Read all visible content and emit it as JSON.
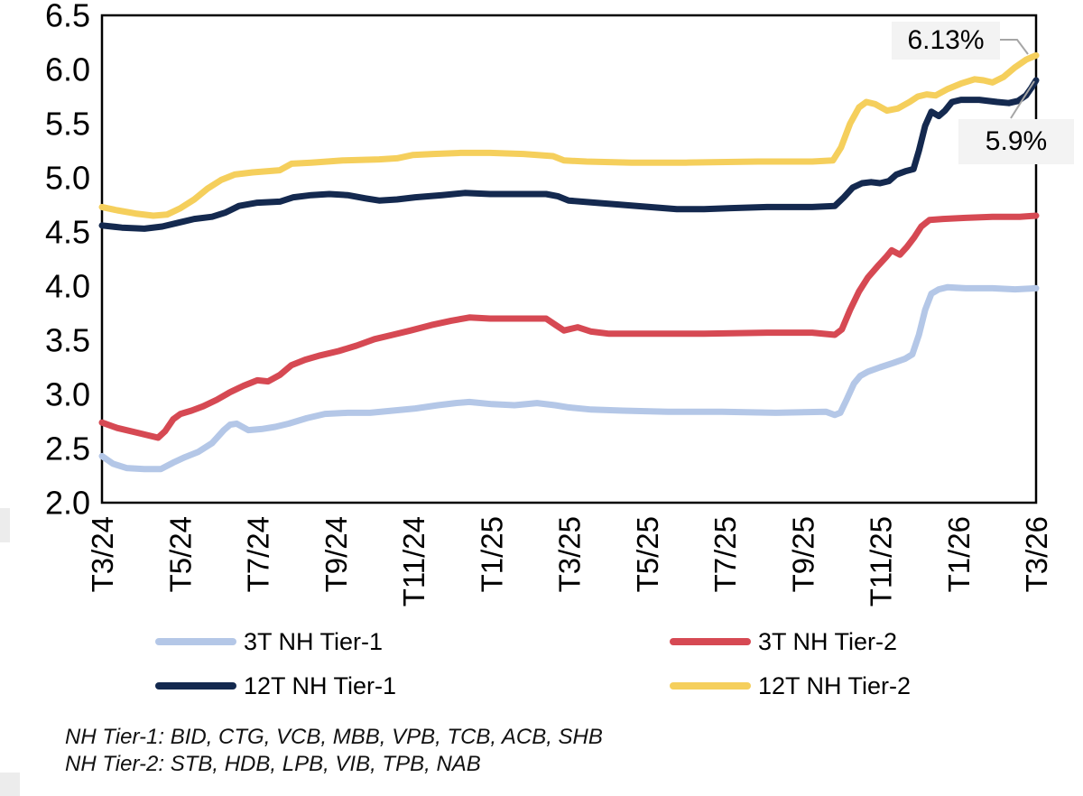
{
  "chart_data": {
    "type": "line",
    "title": "",
    "xlabel": "",
    "ylabel": "",
    "grid": false,
    "legend_position": "bottom",
    "ylim": [
      2.0,
      6.5
    ],
    "y_tick_step": 0.5,
    "y_ticks": [
      "2.0",
      "2.5",
      "3.0",
      "3.5",
      "4.0",
      "4.5",
      "5.0",
      "5.5",
      "6.0",
      "6.5"
    ],
    "x_ticks": [
      "T3/24",
      "T5/24",
      "T7/24",
      "T9/24",
      "T11/24",
      "T1/25",
      "T3/25",
      "T5/25",
      "T7/25",
      "T9/25",
      "T11/25",
      "T1/26",
      "T3/26"
    ],
    "x_tick_interval_months": 2,
    "x_range_months": [
      0,
      24
    ],
    "series": [
      {
        "name": "3T NH Tier-1",
        "color": "#B4C7E7",
        "points": [
          [
            0,
            2.43
          ],
          [
            0.28,
            2.36
          ],
          [
            0.63,
            2.32
          ],
          [
            1.09,
            2.31
          ],
          [
            1.51,
            2.31
          ],
          [
            1.83,
            2.37
          ],
          [
            2.13,
            2.42
          ],
          [
            2.48,
            2.47
          ],
          [
            2.83,
            2.55
          ],
          [
            3.13,
            2.67
          ],
          [
            3.29,
            2.72
          ],
          [
            3.46,
            2.73
          ],
          [
            3.76,
            2.67
          ],
          [
            4.1,
            2.68
          ],
          [
            4.45,
            2.7
          ],
          [
            4.8,
            2.73
          ],
          [
            5.26,
            2.78
          ],
          [
            5.73,
            2.82
          ],
          [
            6.31,
            2.83
          ],
          [
            6.89,
            2.83
          ],
          [
            7.47,
            2.85
          ],
          [
            8.05,
            2.87
          ],
          [
            8.63,
            2.9
          ],
          [
            9.09,
            2.92
          ],
          [
            9.44,
            2.93
          ],
          [
            10.02,
            2.91
          ],
          [
            10.6,
            2.9
          ],
          [
            11.18,
            2.92
          ],
          [
            11.64,
            2.9
          ],
          [
            11.99,
            2.88
          ],
          [
            12.57,
            2.86
          ],
          [
            13.38,
            2.85
          ],
          [
            14.54,
            2.84
          ],
          [
            15.93,
            2.84
          ],
          [
            17.32,
            2.83
          ],
          [
            18.6,
            2.84
          ],
          [
            18.83,
            2.81
          ],
          [
            18.97,
            2.83
          ],
          [
            19.13,
            2.95
          ],
          [
            19.32,
            3.1
          ],
          [
            19.48,
            3.17
          ],
          [
            19.68,
            3.21
          ],
          [
            19.99,
            3.25
          ],
          [
            20.33,
            3.29
          ],
          [
            20.64,
            3.33
          ],
          [
            20.82,
            3.37
          ],
          [
            20.99,
            3.55
          ],
          [
            21.15,
            3.78
          ],
          [
            21.31,
            3.93
          ],
          [
            21.5,
            3.97
          ],
          [
            21.73,
            3.99
          ],
          [
            22.19,
            3.98
          ],
          [
            22.88,
            3.98
          ],
          [
            23.46,
            3.97
          ],
          [
            24,
            3.98
          ]
        ]
      },
      {
        "name": "3T NH Tier-2",
        "color": "#D64953",
        "points": [
          [
            0,
            2.74
          ],
          [
            0.39,
            2.69
          ],
          [
            0.86,
            2.65
          ],
          [
            1.21,
            2.62
          ],
          [
            1.44,
            2.6
          ],
          [
            1.62,
            2.66
          ],
          [
            1.83,
            2.77
          ],
          [
            2.02,
            2.82
          ],
          [
            2.3,
            2.85
          ],
          [
            2.6,
            2.89
          ],
          [
            2.95,
            2.95
          ],
          [
            3.29,
            3.02
          ],
          [
            3.64,
            3.08
          ],
          [
            3.99,
            3.13
          ],
          [
            4.27,
            3.12
          ],
          [
            4.57,
            3.18
          ],
          [
            4.87,
            3.27
          ],
          [
            5.22,
            3.32
          ],
          [
            5.61,
            3.36
          ],
          [
            6.08,
            3.4
          ],
          [
            6.54,
            3.45
          ],
          [
            7,
            3.51
          ],
          [
            7.47,
            3.55
          ],
          [
            7.93,
            3.59
          ],
          [
            8.46,
            3.64
          ],
          [
            8.97,
            3.68
          ],
          [
            9.44,
            3.71
          ],
          [
            9.97,
            3.7
          ],
          [
            10.71,
            3.7
          ],
          [
            11.41,
            3.7
          ],
          [
            11.66,
            3.64
          ],
          [
            11.87,
            3.59
          ],
          [
            12.22,
            3.62
          ],
          [
            12.57,
            3.58
          ],
          [
            13.03,
            3.56
          ],
          [
            14.07,
            3.56
          ],
          [
            15.47,
            3.56
          ],
          [
            17.09,
            3.57
          ],
          [
            18.25,
            3.57
          ],
          [
            18.83,
            3.55
          ],
          [
            19.01,
            3.6
          ],
          [
            19.22,
            3.78
          ],
          [
            19.45,
            3.95
          ],
          [
            19.68,
            4.08
          ],
          [
            19.92,
            4.18
          ],
          [
            20.15,
            4.27
          ],
          [
            20.29,
            4.33
          ],
          [
            20.5,
            4.29
          ],
          [
            20.68,
            4.36
          ],
          [
            20.87,
            4.45
          ],
          [
            21.05,
            4.55
          ],
          [
            21.26,
            4.61
          ],
          [
            21.61,
            4.62
          ],
          [
            22.19,
            4.63
          ],
          [
            22.88,
            4.64
          ],
          [
            23.58,
            4.64
          ],
          [
            24,
            4.65
          ]
        ]
      },
      {
        "name": "12T NH Tier-1",
        "color": "#14294F",
        "points": [
          [
            0,
            4.56
          ],
          [
            0.51,
            4.54
          ],
          [
            1.09,
            4.53
          ],
          [
            1.55,
            4.55
          ],
          [
            2.02,
            4.59
          ],
          [
            2.37,
            4.62
          ],
          [
            2.83,
            4.64
          ],
          [
            3.18,
            4.68
          ],
          [
            3.52,
            4.74
          ],
          [
            3.99,
            4.77
          ],
          [
            4.57,
            4.78
          ],
          [
            4.92,
            4.82
          ],
          [
            5.38,
            4.84
          ],
          [
            5.84,
            4.85
          ],
          [
            6.31,
            4.84
          ],
          [
            6.77,
            4.81
          ],
          [
            7.12,
            4.79
          ],
          [
            7.58,
            4.8
          ],
          [
            8.05,
            4.82
          ],
          [
            8.74,
            4.84
          ],
          [
            9.32,
            4.86
          ],
          [
            9.97,
            4.85
          ],
          [
            10.83,
            4.85
          ],
          [
            11.41,
            4.85
          ],
          [
            11.71,
            4.83
          ],
          [
            11.99,
            4.79
          ],
          [
            12.68,
            4.77
          ],
          [
            13.38,
            4.75
          ],
          [
            14.07,
            4.73
          ],
          [
            14.77,
            4.71
          ],
          [
            15.47,
            4.71
          ],
          [
            16.16,
            4.72
          ],
          [
            17.09,
            4.73
          ],
          [
            18.25,
            4.73
          ],
          [
            18.83,
            4.74
          ],
          [
            19.06,
            4.82
          ],
          [
            19.29,
            4.91
          ],
          [
            19.53,
            4.95
          ],
          [
            19.76,
            4.96
          ],
          [
            19.99,
            4.95
          ],
          [
            20.22,
            4.97
          ],
          [
            20.41,
            5.03
          ],
          [
            20.64,
            5.06
          ],
          [
            20.85,
            5.08
          ],
          [
            20.99,
            5.25
          ],
          [
            21.15,
            5.48
          ],
          [
            21.31,
            5.61
          ],
          [
            21.5,
            5.57
          ],
          [
            21.66,
            5.62
          ],
          [
            21.84,
            5.7
          ],
          [
            22.07,
            5.72
          ],
          [
            22.54,
            5.72
          ],
          [
            23,
            5.7
          ],
          [
            23.3,
            5.69
          ],
          [
            23.54,
            5.71
          ],
          [
            23.74,
            5.76
          ],
          [
            23.88,
            5.83
          ],
          [
            24,
            5.9
          ]
        ]
      },
      {
        "name": "12T NH Tier-2",
        "color": "#F5CF5C",
        "points": [
          [
            0,
            4.73
          ],
          [
            0.39,
            4.7
          ],
          [
            0.86,
            4.67
          ],
          [
            1.32,
            4.65
          ],
          [
            1.67,
            4.66
          ],
          [
            2.02,
            4.72
          ],
          [
            2.37,
            4.8
          ],
          [
            2.71,
            4.9
          ],
          [
            3.06,
            4.98
          ],
          [
            3.41,
            5.03
          ],
          [
            3.87,
            5.05
          ],
          [
            4.57,
            5.07
          ],
          [
            4.87,
            5.13
          ],
          [
            5.38,
            5.14
          ],
          [
            6.19,
            5.16
          ],
          [
            7.12,
            5.17
          ],
          [
            7.58,
            5.18
          ],
          [
            7.98,
            5.21
          ],
          [
            8.51,
            5.22
          ],
          [
            9.21,
            5.23
          ],
          [
            9.97,
            5.23
          ],
          [
            10.83,
            5.22
          ],
          [
            11.59,
            5.2
          ],
          [
            11.87,
            5.16
          ],
          [
            12.45,
            5.15
          ],
          [
            13.61,
            5.14
          ],
          [
            15,
            5.14
          ],
          [
            16.86,
            5.15
          ],
          [
            18.25,
            5.15
          ],
          [
            18.78,
            5.16
          ],
          [
            18.99,
            5.28
          ],
          [
            19.22,
            5.5
          ],
          [
            19.45,
            5.65
          ],
          [
            19.64,
            5.7
          ],
          [
            19.87,
            5.68
          ],
          [
            20.17,
            5.62
          ],
          [
            20.45,
            5.64
          ],
          [
            20.75,
            5.7
          ],
          [
            20.96,
            5.75
          ],
          [
            21.19,
            5.77
          ],
          [
            21.42,
            5.76
          ],
          [
            21.73,
            5.82
          ],
          [
            22.07,
            5.87
          ],
          [
            22.42,
            5.91
          ],
          [
            22.65,
            5.9
          ],
          [
            22.88,
            5.88
          ],
          [
            23.16,
            5.93
          ],
          [
            23.46,
            6.02
          ],
          [
            23.74,
            6.09
          ],
          [
            24,
            6.13
          ]
        ]
      }
    ],
    "annotations": [
      {
        "text": "6.13%",
        "series": "12T NH Tier-2",
        "month": 24,
        "value": 6.13
      },
      {
        "text": "5.9%",
        "series": "12T NH Tier-1",
        "month": 24,
        "value": 5.9
      }
    ],
    "leader_color": "#A6A6A6"
  },
  "footnote": {
    "line1": "NH Tier-1: BID, CTG, VCB, MBB, VPB, TCB, ACB, SHB",
    "line2": "NH Tier-2: STB, HDB, LPB, VIB, TPB, NAB"
  }
}
